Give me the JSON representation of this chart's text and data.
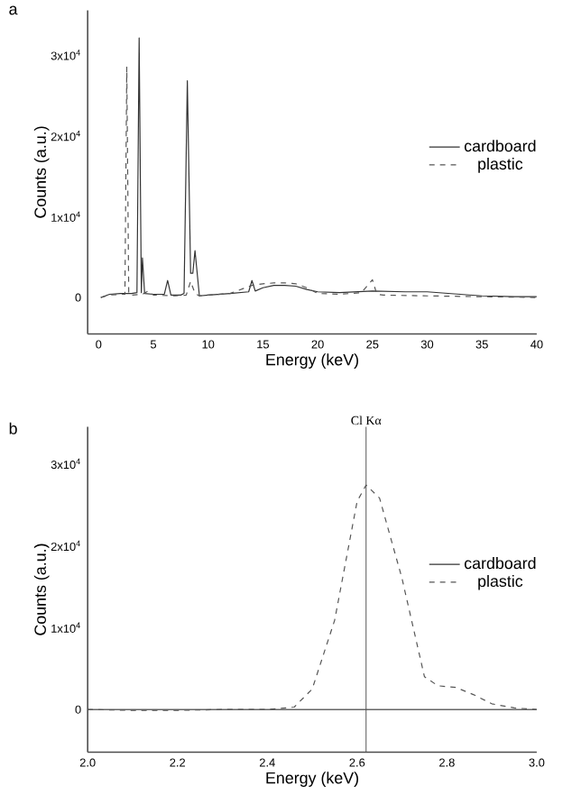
{
  "chart_data": [
    {
      "type": "line",
      "title": "a",
      "xlabel": "Energy (keV)",
      "ylabel": "Counts (a.u.)",
      "xlim": [
        -1,
        40
      ],
      "ylim": [
        -4500,
        35500
      ],
      "xticks": [
        0,
        5,
        10,
        15,
        20,
        25,
        30,
        35,
        40
      ],
      "yticks": [
        0,
        {
          "value": 10000,
          "label": "1x10$^{4}$"
        },
        {
          "value": 20000,
          "label": "2x10$^{4}$"
        },
        {
          "value": 30000,
          "label": "3x10$^{4}$"
        }
      ],
      "legend": "right",
      "series": [
        {
          "name": "cardboard",
          "color": "#333333",
          "line_style": "solid",
          "x": [
            0.2,
            1,
            2,
            3,
            3.5,
            3.7,
            3.9,
            4.0,
            4.2,
            5,
            6.0,
            6.3,
            6.6,
            7.5,
            7.8,
            8.1,
            8.4,
            8.6,
            8.8,
            9.2,
            10,
            12,
            13.7,
            14.0,
            14.3,
            15,
            16,
            17,
            18,
            19,
            20,
            22,
            25,
            28,
            30,
            33,
            35,
            38,
            40
          ],
          "values": [
            0,
            400,
            500,
            500,
            600,
            32100,
            600,
            4900,
            500,
            400,
            400,
            2100,
            300,
            300,
            500,
            26800,
            3000,
            3000,
            5800,
            200,
            300,
            500,
            700,
            2100,
            800,
            1200,
            1500,
            1500,
            1400,
            1000,
            700,
            600,
            800,
            700,
            700,
            400,
            200,
            100,
            100
          ]
        },
        {
          "name": "plastic",
          "color": "#555555",
          "line_style": "dashed",
          "x": [
            0.2,
            1,
            2,
            2.4,
            2.57,
            2.75,
            3,
            4,
            4.5,
            5,
            7,
            8,
            8.4,
            8.8,
            9.2,
            10,
            12,
            14,
            15,
            16,
            17,
            18,
            19,
            20,
            22,
            24,
            25,
            25.4,
            26,
            30,
            35,
            40
          ],
          "values": [
            0,
            300,
            400,
            400,
            28500,
            400,
            300,
            400,
            800,
            300,
            200,
            300,
            2000,
            500,
            200,
            300,
            500,
            1500,
            1700,
            1800,
            1800,
            1700,
            1200,
            500,
            400,
            600,
            2200,
            400,
            300,
            200,
            100,
            0
          ]
        }
      ]
    },
    {
      "type": "line",
      "title": "b",
      "xlabel": "Energy (keV)",
      "ylabel": "Counts (a.u.)",
      "xlim": [
        2,
        3
      ],
      "ylim": [
        -5200,
        34500
      ],
      "xticks": [
        {
          "value": 2,
          "label": "2.0"
        },
        {
          "value": 2.2,
          "label": "2.2"
        },
        {
          "value": 2.4,
          "label": "2.4"
        },
        {
          "value": 2.6,
          "label": "2.6"
        },
        {
          "value": 2.8,
          "label": "2.8"
        },
        {
          "value": 3,
          "label": "3.0"
        }
      ],
      "yticks": [
        0,
        {
          "value": 10000,
          "label": "1x10$^{4}$"
        },
        {
          "value": 20000,
          "label": "2x10$^{4}$"
        },
        {
          "value": 30000,
          "label": "3x10$^{4}$"
        }
      ],
      "legend": "right",
      "ref_lines": [
        {
          "axis": "x",
          "value": 2.62,
          "label": "Cl Kα",
          "color": "#555555"
        }
      ],
      "series": [
        {
          "name": "cardboard",
          "color": "#333333",
          "line_style": "solid",
          "x": [
            2,
            3
          ],
          "values": [
            0,
            0
          ]
        },
        {
          "name": "plastic",
          "color": "#555555",
          "line_style": "dashed",
          "x": [
            2,
            2.1,
            2.2,
            2.3,
            2.4,
            2.46,
            2.5,
            2.55,
            2.6,
            2.62,
            2.65,
            2.7,
            2.75,
            2.78,
            2.82,
            2.86,
            2.9,
            2.95,
            3
          ],
          "values": [
            0,
            -100,
            -100,
            0,
            0,
            300,
            2500,
            10900,
            25400,
            27400,
            25800,
            16000,
            4000,
            2900,
            2700,
            1800,
            700,
            200,
            0
          ]
        }
      ]
    }
  ]
}
